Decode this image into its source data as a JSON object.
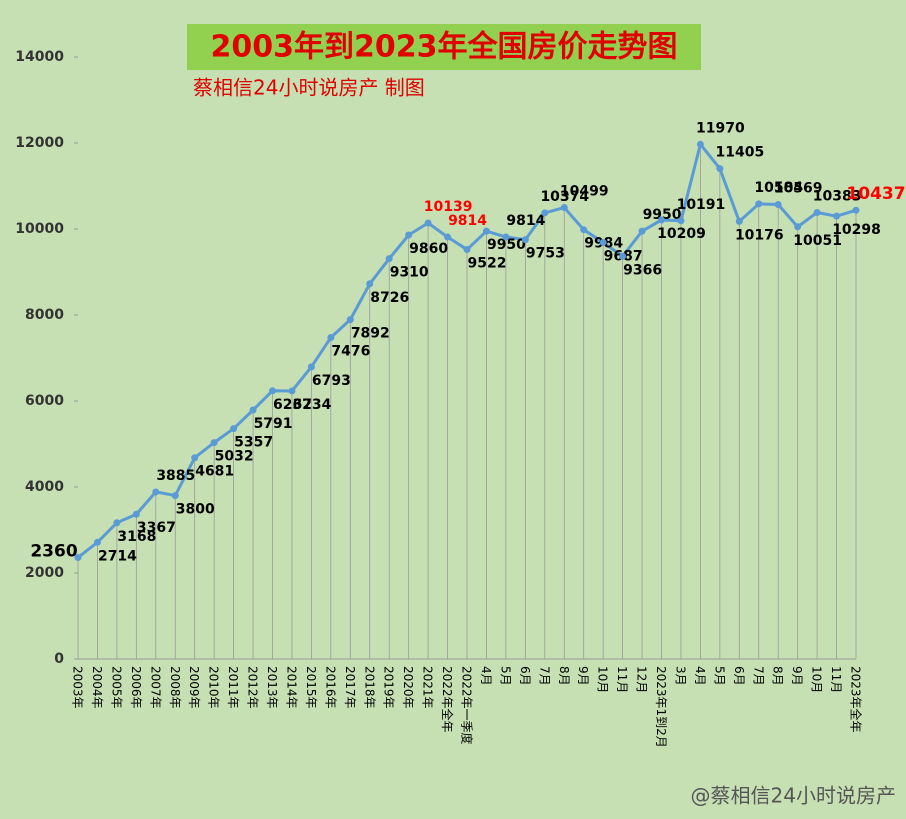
{
  "chart_data": {
    "type": "line",
    "title": "2003年到2023年全国房价走势图",
    "subtitle": "蔡相信24小时说房产  制图",
    "watermark": "@蔡相信24小时说房产",
    "categories": [
      "2003年",
      "2004年",
      "2005年",
      "2006年",
      "2007年",
      "2008年",
      "2009年",
      "2010年",
      "2011年",
      "2012年",
      "2013年",
      "2014年",
      "2015年",
      "2016年",
      "2017年",
      "2018年",
      "2019年",
      "2020年",
      "2021年",
      "2022年全年",
      "2022年一季度",
      "4月",
      "5月",
      "6月",
      "7月",
      "8月",
      "9月",
      "10月",
      "11月",
      "12月",
      "2023年1到2月",
      "3月",
      "4月",
      "5月",
      "6月",
      "7月",
      "8月",
      "9月",
      "10月",
      "11月",
      "2023年全年"
    ],
    "series": [
      {
        "name": "全国房价",
        "color": "#5b9bd5",
        "values": [
          2360,
          2714,
          3168,
          3367,
          3885,
          3800,
          4681,
          5032,
          5357,
          5791,
          6237,
          6234,
          6793,
          7476,
          7892,
          8726,
          9310,
          9860,
          10139,
          9814,
          9522,
          9950,
          9814,
          9753,
          10374,
          10499,
          9984,
          9687,
          9366,
          9950,
          10209,
          10191,
          11970,
          11405,
          10176,
          10584,
          10569,
          10051,
          10383,
          10298,
          10437
        ],
        "label_colors": [
          "#000",
          "#000",
          "#000",
          "#000",
          "#000",
          "#000",
          "#000",
          "#000",
          "#000",
          "#000",
          "#000",
          "#000",
          "#000",
          "#000",
          "#000",
          "#000",
          "#000",
          "#000",
          "#ff0000",
          "#ff0000",
          "#000",
          "#000",
          "#000",
          "#000",
          "#000",
          "#000",
          "#000",
          "#000",
          "#000",
          "#000",
          "#000",
          "#000",
          "#000",
          "#000",
          "#000",
          "#000",
          "#000",
          "#000",
          "#000",
          "#000",
          "#ff0000"
        ]
      }
    ],
    "ylim": [
      0,
      14000
    ],
    "yticks": [
      0,
      2000,
      4000,
      6000,
      8000,
      10000,
      12000,
      14000
    ],
    "drop_lines": true
  }
}
